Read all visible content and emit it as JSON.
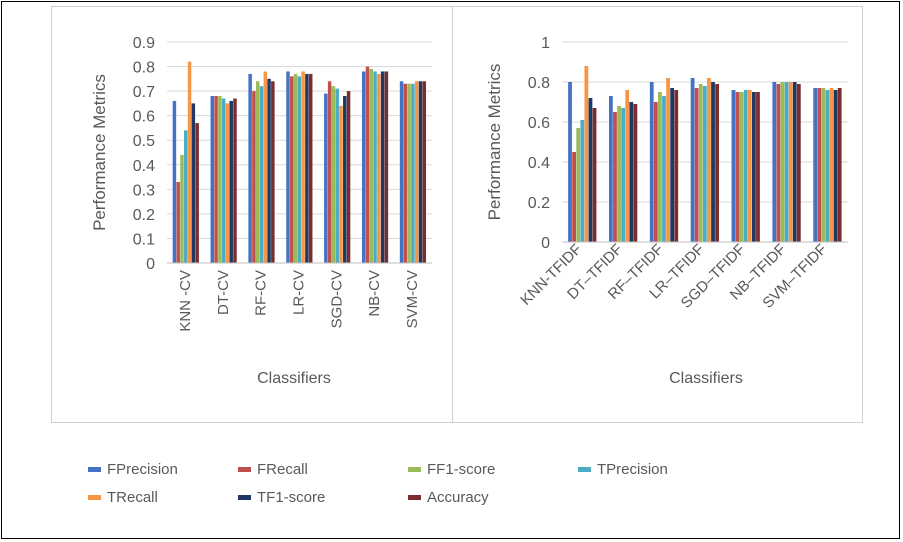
{
  "colors": {
    "FPrecision": "#4472C4",
    "FRecall": "#C0504D",
    "FF1-score": "#9BBB59",
    "TPrecision": "#4BACC6",
    "TRecall": "#F79646",
    "TF1-score": "#1F3864",
    "Accuracy": "#7B2C2C"
  },
  "legend": {
    "items": [
      "FPrecision",
      "FRecall",
      "FF1-score",
      "TPrecision",
      "TRecall",
      "TF1-score",
      "Accuracy"
    ]
  },
  "chart_data": [
    {
      "type": "bar",
      "title": "",
      "xlabel": "Classifiers",
      "ylabel": "Performance Metrics",
      "ylim": [
        0,
        0.9
      ],
      "yticks": [
        "0",
        "0.1",
        "0.2",
        "0.3",
        "0.4",
        "0.5",
        "0.6",
        "0.7",
        "0.8",
        "0.9"
      ],
      "grid": true,
      "categories": [
        "KNN -CV",
        "DT-CV",
        "RF-CV",
        "LR-CV",
        "SGD-CV",
        "NB-CV",
        "SVM-CV"
      ],
      "series": [
        {
          "name": "FPrecision",
          "values": [
            0.66,
            0.68,
            0.77,
            0.78,
            0.69,
            0.78,
            0.74
          ]
        },
        {
          "name": "FRecall",
          "values": [
            0.33,
            0.68,
            0.7,
            0.76,
            0.74,
            0.8,
            0.73
          ]
        },
        {
          "name": "FF1-score",
          "values": [
            0.44,
            0.68,
            0.74,
            0.77,
            0.72,
            0.79,
            0.73
          ]
        },
        {
          "name": "TPrecision",
          "values": [
            0.54,
            0.67,
            0.72,
            0.76,
            0.71,
            0.78,
            0.73
          ]
        },
        {
          "name": "TRecall",
          "values": [
            0.82,
            0.65,
            0.78,
            0.78,
            0.64,
            0.77,
            0.74
          ]
        },
        {
          "name": "TF1-score",
          "values": [
            0.65,
            0.66,
            0.75,
            0.77,
            0.68,
            0.78,
            0.74
          ]
        },
        {
          "name": "Accuracy",
          "values": [
            0.57,
            0.67,
            0.74,
            0.77,
            0.7,
            0.78,
            0.74
          ]
        }
      ]
    },
    {
      "type": "bar",
      "title": "",
      "xlabel": "Classifiers",
      "ylabel": "Performance Metrics",
      "ylim": [
        0,
        1
      ],
      "yticks": [
        "0",
        "0.2",
        "0.4",
        "0.6",
        "0.8",
        "1"
      ],
      "grid": true,
      "categories": [
        "KNN-TFIDF",
        "DT–TFIDF",
        "RF–TFIDF",
        "LR–TFIDF",
        "SGD–TFIDF",
        "NB–TFIDF",
        "SVM–TFIDF"
      ],
      "series": [
        {
          "name": "FPrecision",
          "values": [
            0.8,
            0.73,
            0.8,
            0.82,
            0.76,
            0.8,
            0.77
          ]
        },
        {
          "name": "FRecall",
          "values": [
            0.45,
            0.65,
            0.7,
            0.77,
            0.75,
            0.79,
            0.77
          ]
        },
        {
          "name": "FF1-score",
          "values": [
            0.57,
            0.68,
            0.75,
            0.79,
            0.75,
            0.8,
            0.77
          ]
        },
        {
          "name": "TPrecision",
          "values": [
            0.61,
            0.67,
            0.73,
            0.78,
            0.76,
            0.8,
            0.76
          ]
        },
        {
          "name": "TRecall",
          "values": [
            0.88,
            0.76,
            0.82,
            0.82,
            0.76,
            0.8,
            0.77
          ]
        },
        {
          "name": "TF1-score",
          "values": [
            0.72,
            0.7,
            0.77,
            0.8,
            0.75,
            0.8,
            0.76
          ]
        },
        {
          "name": "Accuracy",
          "values": [
            0.67,
            0.69,
            0.76,
            0.79,
            0.75,
            0.79,
            0.77
          ]
        }
      ]
    }
  ]
}
